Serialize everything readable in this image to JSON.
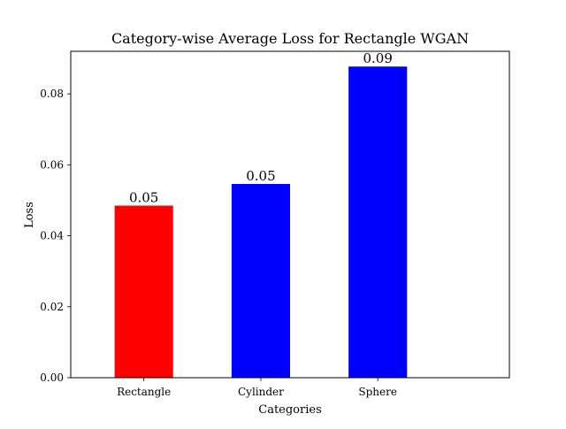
{
  "chart_data": {
    "type": "bar",
    "title": "Category-wise Average Loss for Rectangle WGAN",
    "xlabel": "Categories",
    "ylabel": "Loss",
    "categories": [
      "Rectangle",
      "Cylinder",
      "Sphere"
    ],
    "values": [
      0.0485,
      0.0546,
      0.0877
    ],
    "data_labels": [
      "0.05",
      "0.05",
      "0.09"
    ],
    "bar_colors": [
      "#ff0000",
      "#0000ff",
      "#0000ff"
    ],
    "ylim": [
      0,
      0.092
    ],
    "yticks": [
      0,
      0.02,
      0.04,
      0.06,
      0.08
    ],
    "ytick_labels": [
      "0.00",
      "0.02",
      "0.04",
      "0.06",
      "0.08"
    ],
    "grid": false,
    "legend": "none"
  }
}
